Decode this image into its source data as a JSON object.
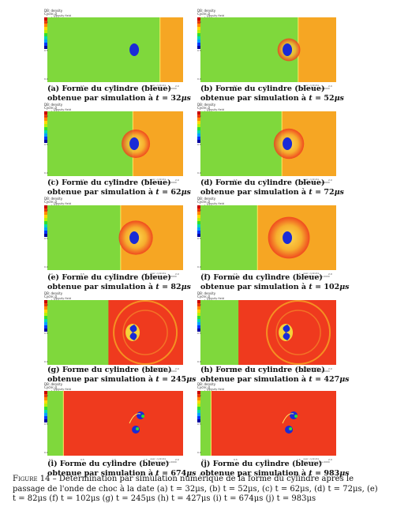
{
  "legend": {
    "title": "DB: density",
    "var": "Cycle: 0",
    "ctx": "Density field",
    "colors": [
      "#c80000",
      "#ff3c00",
      "#ff8a00",
      "#ffd700",
      "#b7f000",
      "#30e030",
      "#00d9b0",
      "#00a0ff",
      "#0038ff",
      "#0000a0"
    ],
    "ticks": [
      "4.000",
      "3.000",
      "2.000",
      "1.000",
      "0.000"
    ]
  },
  "xticks": [
    "0.0",
    "0.5",
    "1.0",
    "1.5",
    "2.0"
  ],
  "yticks": [
    "1.0",
    "0.5",
    "0.0"
  ],
  "info_lines": [
    "user: cylindre",
    "Rende Cyl: 1.0e+0000"
  ],
  "colors": {
    "green": "#7fd83c",
    "orange": "#f6a623",
    "red": "#ef3a1e",
    "bluebody": "#1a2bd6",
    "halo": "#f4d23a"
  },
  "panels": [
    {
      "id": "a",
      "label": "(a)",
      "time": "32",
      "front": 0.83,
      "kind": "early"
    },
    {
      "id": "b",
      "label": "(b)",
      "time": "52",
      "front": 0.72,
      "kind": "early"
    },
    {
      "id": "c",
      "label": "(c)",
      "time": "62",
      "front": 0.63,
      "kind": "early"
    },
    {
      "id": "d",
      "label": "(d)",
      "time": "72",
      "front": 0.6,
      "kind": "early"
    },
    {
      "id": "e",
      "label": "(e)",
      "time": "82",
      "front": 0.54,
      "kind": "early"
    },
    {
      "id": "f",
      "label": "(f)",
      "time": "102",
      "front": 0.42,
      "kind": "early"
    },
    {
      "id": "g",
      "label": "(g)",
      "time": "245",
      "front": 0.45,
      "kind": "mid"
    },
    {
      "id": "h",
      "label": "(h)",
      "time": "427",
      "front": 0.28,
      "kind": "mid"
    },
    {
      "id": "i",
      "label": "(i)",
      "time": "674",
      "front": 0.06,
      "kind": "late"
    },
    {
      "id": "j",
      "label": "(j)",
      "time": "983",
      "front": 0.02,
      "kind": "late"
    }
  ],
  "caption_prefix": "Forme du cylindre (bleue) obtenue par simulation à",
  "t_symbol": "t",
  "unit": "μs",
  "figure_label": "Figure 14",
  "figure_caption": "– Détermination par simulation numérique de la forme du cylindre après le passage de l'onde de choc à la date (a) t = 32μs, (b) t = 52μs, (c) t = 62μs, (d) t = 72μs, (e) t = 82μs (f) t = 102μs (g) t = 245μs (h) t = 427μs (i) t = 674μs (j) t = 983μs"
}
